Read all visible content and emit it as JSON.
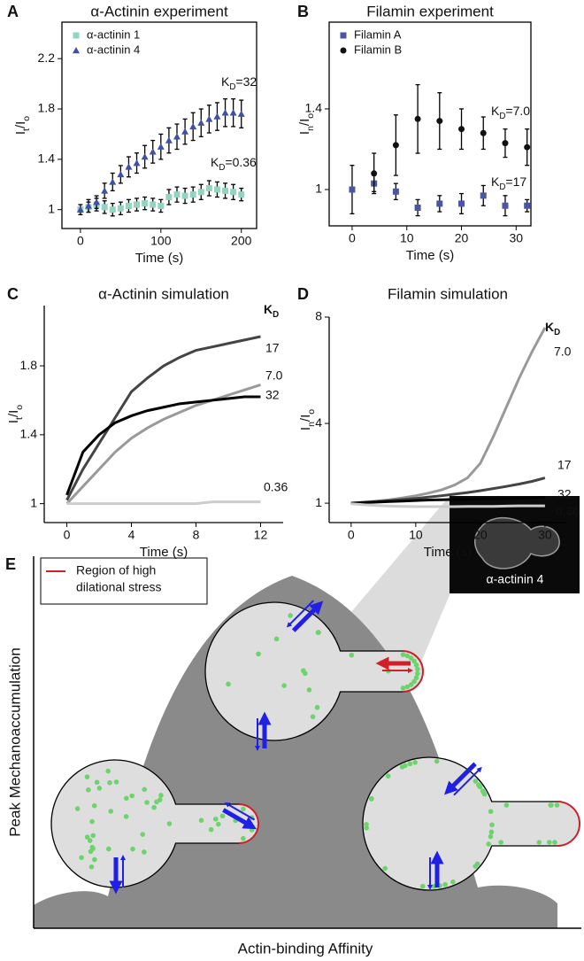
{
  "chart_data": [
    {
      "label": "A",
      "type": "scatter",
      "title": "α-Actinin experiment",
      "xlabel": "Time (s)",
      "ylabel": [
        {
          "text": "I"
        },
        {
          "text": "t",
          "sub": true
        },
        {
          "text": "/I"
        },
        {
          "text": "o",
          "sub": true
        }
      ],
      "frame": "box",
      "legend": "upper left",
      "x": [
        0,
        10,
        20,
        30,
        40,
        50,
        60,
        70,
        80,
        90,
        100,
        110,
        120,
        130,
        140,
        150,
        160,
        170,
        180,
        190,
        200
      ],
      "series": [
        {
          "name": "α-actinin 1",
          "color": "#93d3c0",
          "marker": "square",
          "values": [
            1.0,
            1.02,
            1.04,
            1.02,
            1.0,
            1.01,
            1.03,
            1.04,
            1.05,
            1.04,
            1.03,
            1.1,
            1.12,
            1.11,
            1.12,
            1.14,
            1.17,
            1.16,
            1.15,
            1.14,
            1.12
          ],
          "errors": [
            0.02,
            0.04,
            0.05,
            0.05,
            0.05,
            0.05,
            0.05,
            0.05,
            0.05,
            0.05,
            0.05,
            0.06,
            0.06,
            0.06,
            0.06,
            0.06,
            0.06,
            0.06,
            0.06,
            0.06,
            0.05
          ]
        },
        {
          "name": "α-actinin 4",
          "color": "#3f51a6",
          "marker": "triangle",
          "values": [
            1.0,
            1.03,
            1.06,
            1.15,
            1.22,
            1.28,
            1.34,
            1.37,
            1.42,
            1.46,
            1.5,
            1.55,
            1.58,
            1.62,
            1.66,
            1.69,
            1.72,
            1.74,
            1.77,
            1.77,
            1.76
          ],
          "errors": [
            0.04,
            0.05,
            0.05,
            0.06,
            0.07,
            0.07,
            0.08,
            0.08,
            0.09,
            0.09,
            0.1,
            0.1,
            0.1,
            0.1,
            0.11,
            0.11,
            0.11,
            0.11,
            0.11,
            0.11,
            0.11
          ]
        }
      ],
      "annotations": [
        [
          {
            "text": "K"
          },
          {
            "text": "D",
            "sub": true
          },
          {
            "text": "=32"
          }
        ],
        [
          {
            "text": "K"
          },
          {
            "text": "D",
            "sub": true
          },
          {
            "text": "=0.36"
          }
        ]
      ],
      "xlim": [
        -23,
        219
      ],
      "ylim": [
        0.85,
        2.49
      ],
      "xticks": [
        0,
        100,
        200
      ],
      "yticks": [
        1,
        1.4,
        1.8,
        2.2
      ]
    },
    {
      "label": "B",
      "type": "scatter",
      "title": "Filamin experiment",
      "xlabel": "Time (s)",
      "ylabel": [
        {
          "text": "I"
        },
        {
          "text": "n",
          "sub": true
        },
        {
          "text": "/I"
        },
        {
          "text": "o",
          "sub": true
        }
      ],
      "frame": "box",
      "legend": "upper left",
      "x": [
        0,
        4,
        8,
        12,
        16,
        20,
        24,
        28,
        32
      ],
      "series": [
        {
          "name": "Filamin A",
          "color": "#4b55a6",
          "marker": "square",
          "values": [
            1.0,
            1.03,
            0.99,
            0.91,
            0.93,
            0.93,
            0.97,
            0.92,
            0.92
          ],
          "errors": [
            0.12,
            0.04,
            0.04,
            0.04,
            0.04,
            0.05,
            0.05,
            0.05,
            0.03
          ]
        },
        {
          "name": "Filamin B",
          "color": "#111111",
          "marker": "circle",
          "values": [
            null,
            1.08,
            1.22,
            1.35,
            1.34,
            1.3,
            1.28,
            1.23,
            1.21
          ],
          "errors": [
            null,
            0.1,
            0.15,
            0.17,
            0.14,
            0.1,
            0.08,
            0.07,
            0.09
          ]
        }
      ],
      "annotations": [
        [
          {
            "text": "K"
          },
          {
            "text": "D",
            "sub": true
          },
          {
            "text": "=7.0"
          }
        ],
        [
          {
            "text": "K"
          },
          {
            "text": "D",
            "sub": true
          },
          {
            "text": "=17"
          }
        ]
      ],
      "xlim": [
        -4.2,
        32.7
      ],
      "ylim": [
        0.82,
        1.83
      ],
      "xticks": [
        0,
        10,
        20,
        30
      ],
      "yticks": [
        1,
        1.4
      ]
    },
    {
      "label": "C",
      "type": "line",
      "title": "α-Actinin simulation",
      "xlabel": "Time (s)",
      "ylabel": [
        {
          "text": "I"
        },
        {
          "text": "t",
          "sub": true
        },
        {
          "text": "/I"
        },
        {
          "text": "o",
          "sub": true
        }
      ],
      "frame": "axes",
      "series_header": [
        {
          "text": "K"
        },
        {
          "text": "D",
          "sub": true
        }
      ],
      "x": [
        0,
        1,
        2,
        3,
        4,
        5,
        6,
        7,
        8,
        9,
        10,
        11,
        12
      ],
      "series": [
        {
          "name": "17",
          "color": "#444444",
          "values": [
            1.02,
            1.2,
            1.35,
            1.5,
            1.65,
            1.73,
            1.8,
            1.85,
            1.89,
            1.91,
            1.93,
            1.95,
            1.97
          ]
        },
        {
          "name": "7.0",
          "color": "#999999",
          "values": [
            1.0,
            1.1,
            1.2,
            1.3,
            1.38,
            1.44,
            1.49,
            1.53,
            1.57,
            1.6,
            1.63,
            1.66,
            1.69
          ]
        },
        {
          "name": "32",
          "color": "#000000",
          "values": [
            1.05,
            1.3,
            1.4,
            1.47,
            1.51,
            1.54,
            1.56,
            1.58,
            1.59,
            1.6,
            1.61,
            1.62,
            1.62
          ]
        },
        {
          "name": "0.36",
          "color": "#cccccc",
          "values": [
            1.0,
            1.0,
            1.0,
            1.0,
            1.0,
            1.0,
            1.0,
            1.0,
            1.0,
            1.01,
            1.01,
            1.01,
            1.01
          ]
        }
      ],
      "xlim": [
        -1.4,
        13.4
      ],
      "ylim": [
        0.89,
        2.15
      ],
      "xticks": [
        0,
        4,
        8,
        12
      ],
      "yticks": [
        1,
        1.4,
        1.8
      ]
    },
    {
      "label": "D",
      "type": "line",
      "title": "Filamin simulation",
      "xlabel": "Time (s)",
      "ylabel": [
        {
          "text": "I"
        },
        {
          "text": "n",
          "sub": true
        },
        {
          "text": "/I"
        },
        {
          "text": "o",
          "sub": true
        }
      ],
      "frame": "axes",
      "series_header": [
        {
          "text": "K"
        },
        {
          "text": "D",
          "sub": true
        }
      ],
      "x": [
        0,
        2,
        4,
        6,
        8,
        10,
        12,
        14,
        16,
        18,
        20,
        22,
        24,
        26,
        28,
        30
      ],
      "series": [
        {
          "name": "7.0",
          "color": "#999999",
          "values": [
            1.0,
            1.04,
            1.08,
            1.13,
            1.2,
            1.28,
            1.38,
            1.5,
            1.68,
            1.95,
            2.5,
            3.5,
            4.6,
            5.7,
            6.7,
            7.6
          ]
        },
        {
          "name": "17",
          "color": "#444444",
          "values": [
            1.0,
            1.03,
            1.06,
            1.1,
            1.14,
            1.18,
            1.23,
            1.28,
            1.34,
            1.4,
            1.47,
            1.55,
            1.63,
            1.72,
            1.82,
            1.95
          ]
        },
        {
          "name": "32",
          "color": "#000000",
          "values": [
            1.0,
            1.02,
            1.04,
            1.06,
            1.08,
            1.1,
            1.12,
            1.13,
            1.14,
            1.15,
            1.16,
            1.17,
            1.18,
            1.19,
            1.2,
            1.21
          ]
        },
        {
          "name": "0.36",
          "color": "#cccccc",
          "values": [
            0.98,
            0.94,
            0.91,
            0.89,
            0.88,
            0.87,
            0.87,
            0.87,
            0.87,
            0.88,
            0.88,
            0.88,
            0.89,
            0.9,
            0.9,
            0.9
          ]
        }
      ],
      "xlim": [
        -3.4,
        33.3
      ],
      "ylim": [
        0.27,
        8
      ],
      "xticks": [
        0,
        10,
        20,
        30
      ],
      "yticks": [
        1,
        4,
        8
      ]
    }
  ],
  "diagram": {
    "label": "E",
    "legend": [
      "Region of high",
      "dilational stress"
    ],
    "ylabel": "Peak Mechanoaccumulation",
    "xlabel": "Actin-binding Affinity",
    "inset_label": "α-actinin 4"
  }
}
